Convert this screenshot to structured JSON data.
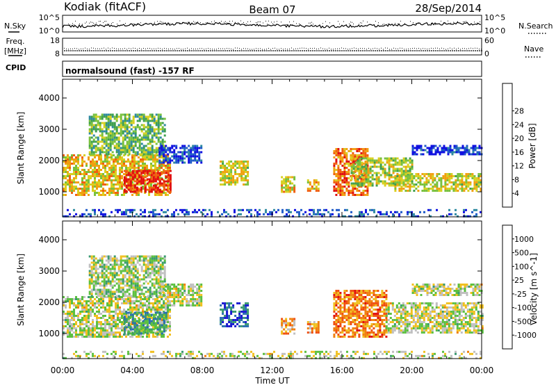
{
  "header": {
    "station": "Kodiak (fitACF)",
    "beam": "Beam 07",
    "date": "28/Sep/2014"
  },
  "noise_panel": {
    "left_label": "N.Sky",
    "left_ticks": [
      "10^5",
      "10^0"
    ],
    "right_ticks": [
      "10^5",
      "10^0"
    ],
    "right_label": "N.Search"
  },
  "freq_panel": {
    "left_label_1": "Freq.",
    "left_label_2": "[MHz]",
    "left_ticks": [
      "18",
      "8"
    ],
    "right_ticks": [
      "60",
      "0"
    ],
    "right_label": "Nave"
  },
  "cpid": {
    "label": "CPID",
    "value": "normalsound (fast) -157 RF"
  },
  "chart_data": [
    {
      "type": "heatmap",
      "name": "Power",
      "ylabel": "Slant Range [km]",
      "xlabel": "Time UT",
      "x_ticks": [
        "00:00",
        "04:00",
        "08:00",
        "12:00",
        "16:00",
        "20:00",
        "00:00"
      ],
      "y_ticks": [
        "1000",
        "2000",
        "3000",
        "4000"
      ],
      "xlim_hours": [
        0,
        24
      ],
      "ylim_km": [
        200,
        4600
      ],
      "colorbar": {
        "label": "Power [dB]",
        "ticks": [
          "4",
          "8",
          "12",
          "16",
          "20",
          "24",
          "28"
        ],
        "colors": [
          "#1010e0",
          "#1e5ac8",
          "#2e8aa0",
          "#3fa04f",
          "#79c13e",
          "#d8d020",
          "#f0a010",
          "#f06010",
          "#e01010"
        ]
      },
      "regions": [
        {
          "t0": 0.0,
          "t1": 6.2,
          "r0": 900,
          "r1": 2200,
          "level": 0.65
        },
        {
          "t0": 3.5,
          "t1": 6.2,
          "r0": 1000,
          "r1": 1700,
          "level": 0.95
        },
        {
          "t0": 1.5,
          "t1": 5.8,
          "r0": 2200,
          "r1": 3500,
          "level": 0.45
        },
        {
          "t0": 5.5,
          "t1": 8.0,
          "r0": 1900,
          "r1": 2500,
          "level": 0.12
        },
        {
          "t0": 9.0,
          "t1": 10.6,
          "r0": 1200,
          "r1": 2000,
          "level": 0.6
        },
        {
          "t0": 12.5,
          "t1": 13.3,
          "r0": 1000,
          "r1": 1500,
          "level": 0.65
        },
        {
          "t0": 14.0,
          "t1": 14.6,
          "r0": 1000,
          "r1": 1400,
          "level": 0.65
        },
        {
          "t0": 15.5,
          "t1": 17.5,
          "r0": 900,
          "r1": 2400,
          "level": 0.8
        },
        {
          "t0": 16.5,
          "t1": 20.0,
          "r0": 1200,
          "r1": 2100,
          "level": 0.55
        },
        {
          "t0": 19.0,
          "t1": 24.0,
          "r0": 1000,
          "r1": 1600,
          "level": 0.6
        },
        {
          "t0": 20.0,
          "t1": 24.0,
          "r0": 2200,
          "r1": 2500,
          "level": 0.1
        },
        {
          "t0": 0.0,
          "t1": 24.0,
          "r0": 200,
          "r1": 450,
          "level": 0.15
        }
      ]
    },
    {
      "type": "heatmap",
      "name": "Velocity",
      "ylabel": "Slant Range [km]",
      "xlabel": "Time UT",
      "x_ticks": [
        "00:00",
        "04:00",
        "08:00",
        "12:00",
        "16:00",
        "20:00",
        "00:00"
      ],
      "y_ticks": [
        "1000",
        "2000",
        "3000",
        "4000"
      ],
      "xlim_hours": [
        0,
        24
      ],
      "ylim_km": [
        200,
        4600
      ],
      "colorbar": {
        "label": "Velocity [m s^-1]",
        "ticks": [
          "1000",
          "500",
          "100",
          "25",
          "-25",
          "-100",
          "-500",
          "-1000"
        ],
        "colors": [
          "#1a1ad0",
          "#2a6fb0",
          "#3a9a70",
          "#5cc040",
          "#c0c0c0",
          "#f0c020",
          "#f08010",
          "#f05010",
          "#e01010"
        ]
      },
      "regions": [
        {
          "t0": 0.0,
          "t1": 6.2,
          "r0": 900,
          "r1": 2200,
          "level": 0.5
        },
        {
          "t0": 3.5,
          "t1": 6.0,
          "r0": 1000,
          "r1": 1700,
          "level": 0.3
        },
        {
          "t0": 1.5,
          "t1": 5.8,
          "r0": 2200,
          "r1": 3500,
          "level": 0.45
        },
        {
          "t0": 5.5,
          "t1": 8.0,
          "r0": 1900,
          "r1": 2600,
          "level": 0.5
        },
        {
          "t0": 9.0,
          "t1": 10.6,
          "r0": 1200,
          "r1": 2000,
          "level": 0.15
        },
        {
          "t0": 12.5,
          "t1": 13.3,
          "r0": 1000,
          "r1": 1500,
          "level": 0.65
        },
        {
          "t0": 14.0,
          "t1": 14.6,
          "r0": 1000,
          "r1": 1400,
          "level": 0.65
        },
        {
          "t0": 15.5,
          "t1": 18.5,
          "r0": 900,
          "r1": 2400,
          "level": 0.75
        },
        {
          "t0": 18.5,
          "t1": 24.0,
          "r0": 1000,
          "r1": 2000,
          "level": 0.5
        },
        {
          "t0": 20.0,
          "t1": 24.0,
          "r0": 2200,
          "r1": 2600,
          "level": 0.5
        },
        {
          "t0": 0.0,
          "t1": 24.0,
          "r0": 200,
          "r1": 450,
          "level": 0.5
        }
      ]
    }
  ]
}
